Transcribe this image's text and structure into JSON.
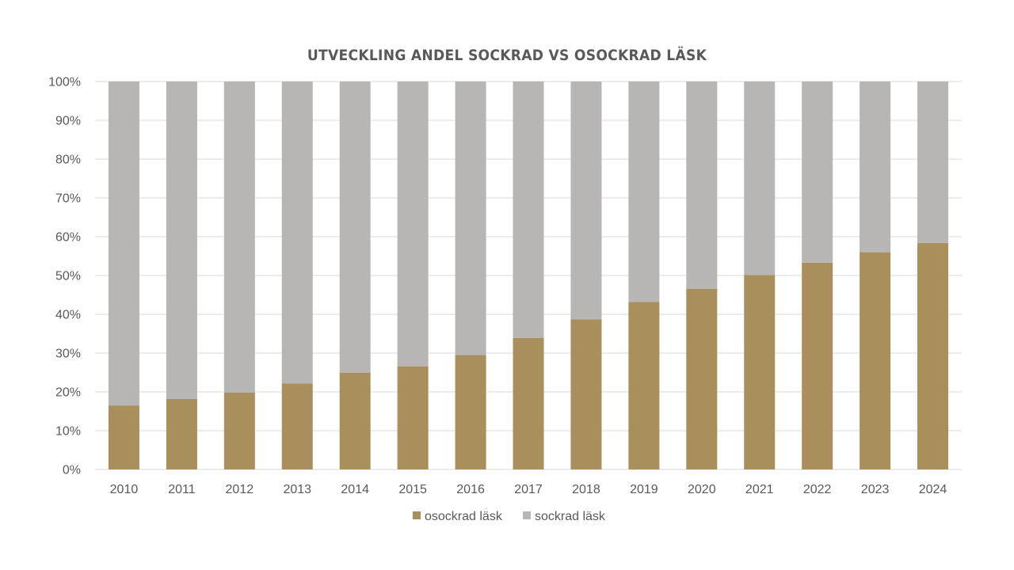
{
  "chart_data": {
    "type": "bar",
    "stacked": true,
    "percent_stacked": true,
    "title": "UTVECKLING ANDEL SOCKRAD VS OSOCKRAD LÄSK",
    "categories": [
      "2010",
      "2011",
      "2012",
      "2013",
      "2014",
      "2015",
      "2016",
      "2017",
      "2018",
      "2019",
      "2020",
      "2021",
      "2022",
      "2023",
      "2024"
    ],
    "series": [
      {
        "name": "osockrad läsk",
        "color": "#a88f5c",
        "values": [
          16.5,
          18.2,
          19.8,
          22.2,
          24.9,
          26.6,
          29.5,
          33.9,
          38.7,
          43.2,
          46.6,
          50.1,
          53.3,
          56.0,
          58.4
        ]
      },
      {
        "name": "sockrad läsk",
        "color": "#b7b6b4",
        "values": [
          83.5,
          81.8,
          80.2,
          77.8,
          75.1,
          73.4,
          70.5,
          66.1,
          61.3,
          56.8,
          53.4,
          49.9,
          46.7,
          44.0,
          41.6
        ]
      }
    ],
    "ylim": [
      0,
      100
    ],
    "yticks": [
      "0%",
      "10%",
      "20%",
      "30%",
      "40%",
      "50%",
      "60%",
      "70%",
      "80%",
      "90%",
      "100%"
    ],
    "grid": true,
    "legend": "bottom-center"
  }
}
